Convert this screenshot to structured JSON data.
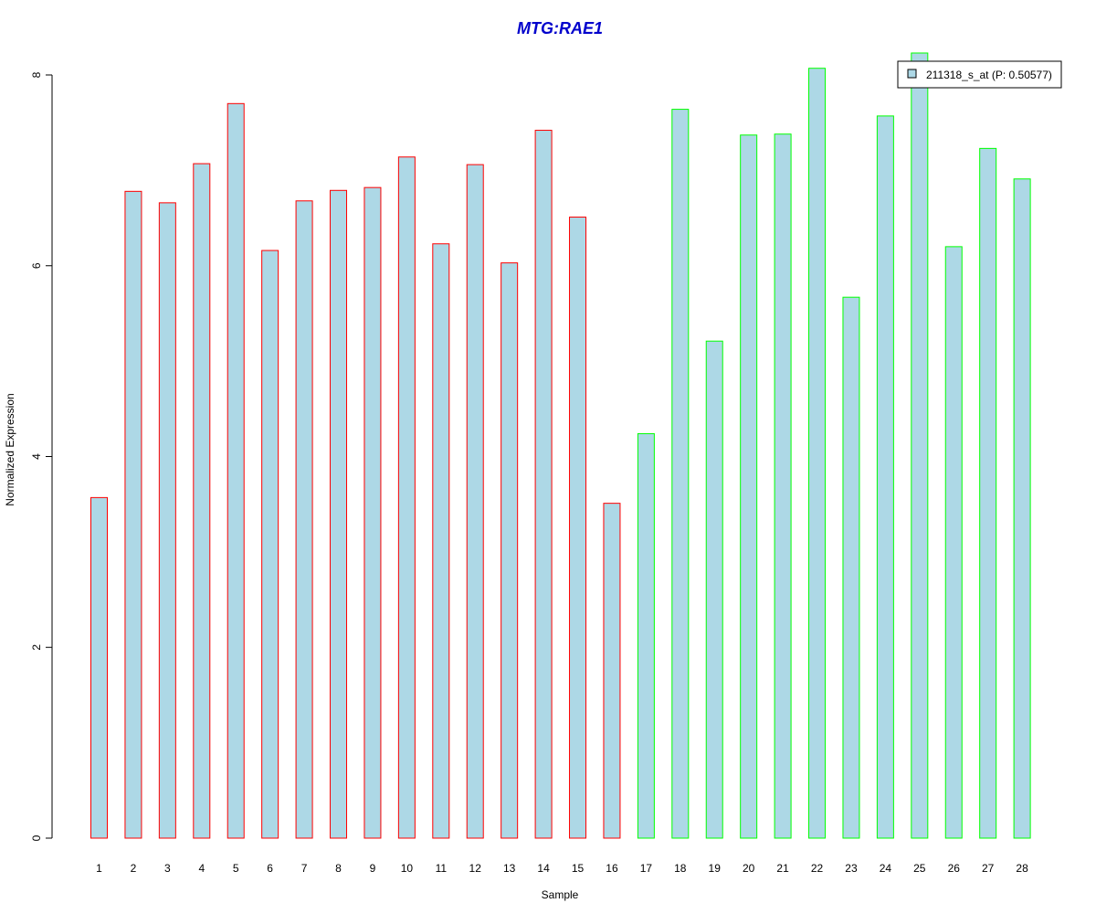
{
  "chart_data": {
    "type": "bar",
    "title": "MTG:RAE1",
    "title_color": "#0000CC",
    "xlabel": "Sample",
    "ylabel": "Normalized Expression",
    "categories": [
      "1",
      "2",
      "3",
      "4",
      "5",
      "6",
      "7",
      "8",
      "9",
      "10",
      "11",
      "12",
      "13",
      "14",
      "15",
      "16",
      "17",
      "18",
      "19",
      "20",
      "21",
      "22",
      "23",
      "24",
      "25",
      "26",
      "27",
      "28"
    ],
    "series": [
      {
        "name": "211318_s_at (P: 0.50577)",
        "values": [
          3.57,
          6.78,
          6.66,
          7.07,
          7.7,
          6.16,
          6.68,
          6.79,
          6.82,
          7.14,
          6.23,
          7.06,
          6.03,
          7.42,
          6.51,
          3.51,
          4.24,
          7.64,
          5.21,
          7.37,
          7.38,
          8.07,
          5.67,
          7.57,
          8.23,
          6.2,
          7.23,
          6.91
        ]
      }
    ],
    "group_border_colors": [
      "#FF0000",
      "#FF0000",
      "#FF0000",
      "#FF0000",
      "#FF0000",
      "#FF0000",
      "#FF0000",
      "#FF0000",
      "#FF0000",
      "#FF0000",
      "#FF0000",
      "#FF0000",
      "#FF0000",
      "#FF0000",
      "#FF0000",
      "#FF0000",
      "#00FF00",
      "#00FF00",
      "#00FF00",
      "#00FF00",
      "#00FF00",
      "#00FF00",
      "#00FF00",
      "#00FF00",
      "#00FF00",
      "#00FF00",
      "#00FF00",
      "#00FF00"
    ],
    "bar_fill": "#ADD8E6",
    "yticks": [
      "0",
      "2",
      "4",
      "6",
      "8"
    ],
    "ylim": [
      0,
      8
    ],
    "grid": false,
    "legend_position": "top-right"
  }
}
